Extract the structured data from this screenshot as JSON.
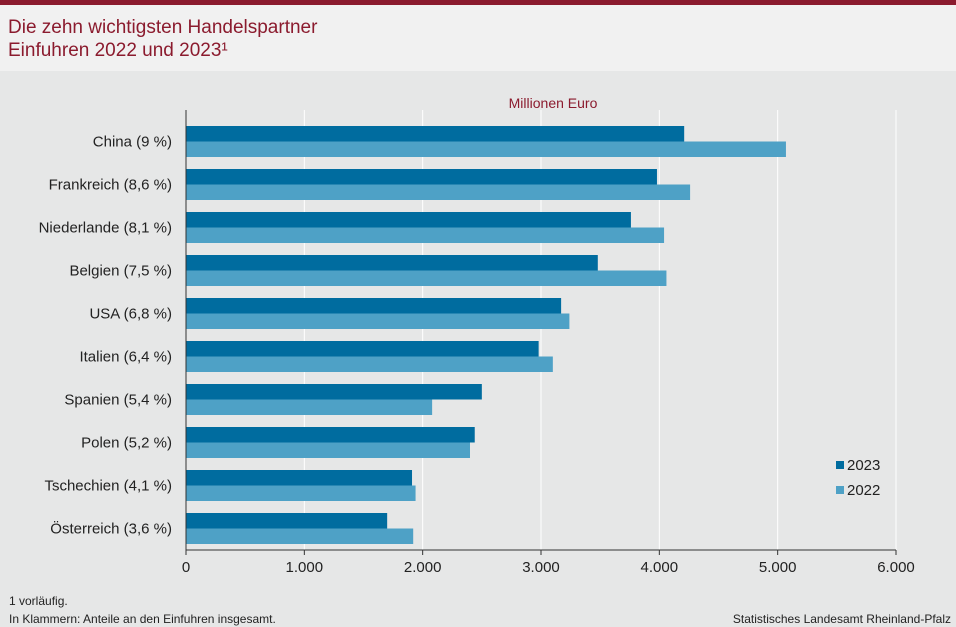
{
  "header": {
    "title_line1": "Die zehn wichtigsten Handelspartner",
    "title_line2": "Einfuhren 2022 und 2023¹"
  },
  "footer": {
    "note1": "1 vorläufig.",
    "note2": "In Klammern: Anteile an den Einfuhren insgesamt.",
    "source": "Statistisches Landesamt Rheinland-Pfalz"
  },
  "chart_data": {
    "type": "bar",
    "orientation": "horizontal",
    "unit_label": "Millionen Euro",
    "categories": [
      "China (9 %)",
      "Frankreich (8,6 %)",
      "Niederlande (8,1 %)",
      "Belgien (7,5 %)",
      "USA (6,8 %)",
      "Italien (6,4 %)",
      "Spanien (5,4 %)",
      "Polen (5,2 %)",
      "Tschechien (4,1 %)",
      "Österreich (3,6 %)"
    ],
    "series": [
      {
        "name": "2023",
        "color": "#006c9f",
        "values": [
          4210,
          3980,
          3760,
          3480,
          3170,
          2980,
          2500,
          2440,
          1910,
          1700
        ]
      },
      {
        "name": "2022",
        "color": "#4ea1c6",
        "values": [
          5070,
          4260,
          4040,
          4060,
          3240,
          3100,
          2080,
          2400,
          1940,
          1920
        ]
      }
    ],
    "xlim": [
      0,
      6000
    ],
    "xticks": [
      0,
      1000,
      2000,
      3000,
      4000,
      5000,
      6000
    ],
    "xtick_labels": [
      "0",
      "1.000",
      "2.000",
      "3.000",
      "4.000",
      "5.000",
      "6.000"
    ],
    "grid": true,
    "legend_position": "bottom-right"
  }
}
